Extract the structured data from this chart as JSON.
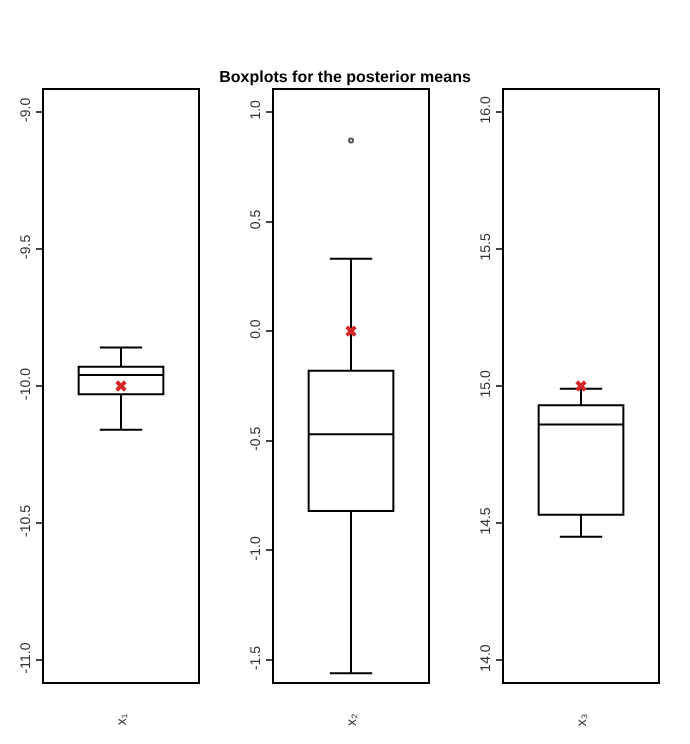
{
  "chart_data": [
    {
      "type": "box",
      "categories": [
        "x₁"
      ],
      "boxes": [
        {
          "low": -10.16,
          "q1": -10.03,
          "median": -9.96,
          "q3": -9.93,
          "high": -9.86,
          "mean": -10.0
        }
      ],
      "ylim": [
        -11.08,
        -8.92
      ],
      "yticks": [
        {
          "value": -11,
          "label": "-11.0"
        },
        -10.5,
        {
          "value": -10,
          "label": "-10.0"
        },
        -9.5,
        {
          "value": -9,
          "label": "-9.0"
        }
      ],
      "grid": false
    },
    {
      "type": "box",
      "title": "Boxplots for the posterior means",
      "categories": [
        "x₂"
      ],
      "boxes": [
        {
          "low": -1.56,
          "q1": -0.82,
          "median": -0.47,
          "q3": -0.18,
          "high": 0.33,
          "mean": 0.0,
          "outliers": [
            0.87
          ]
        }
      ],
      "ylim": [
        -1.6,
        1.1
      ],
      "yticks": [
        -1.5,
        {
          "value": -1,
          "label": "-1.0"
        },
        -0.5,
        {
          "value": 0,
          "label": "0.0"
        },
        0.5,
        {
          "value": 1,
          "label": "1.0"
        }
      ],
      "grid": false
    },
    {
      "type": "box",
      "categories": [
        "x₃"
      ],
      "boxes": [
        {
          "low": 14.45,
          "q1": 14.53,
          "median": 14.86,
          "q3": 14.93,
          "high": 14.99,
          "mean": 15.0
        }
      ],
      "ylim": [
        13.92,
        16.08
      ],
      "yticks": [
        {
          "value": 14,
          "label": "14.0"
        },
        14.5,
        {
          "value": 15,
          "label": "15.0"
        },
        15.5,
        {
          "value": 16,
          "label": "16.0"
        }
      ],
      "grid": false
    }
  ]
}
